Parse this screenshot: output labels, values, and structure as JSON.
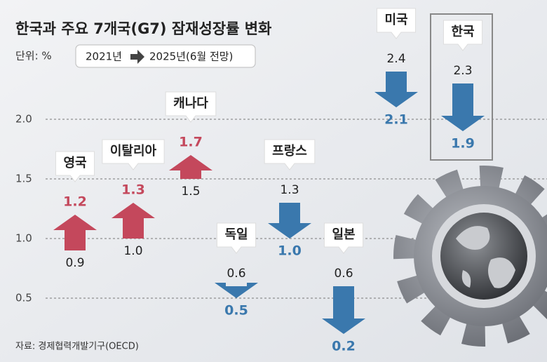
{
  "chart_data": {
    "type": "arrow",
    "title": "한국과 주요 7개국(G7) 잠재성장률 변화",
    "unit": "단위: %",
    "source": "자료: 경제협력개발기구(OECD)",
    "categories": [
      "영국",
      "이탈리아",
      "캐나다",
      "독일",
      "프랑스",
      "일본",
      "미국",
      "한국"
    ],
    "series": [
      {
        "name": "2021년",
        "values": [
          0.9,
          1.0,
          1.5,
          0.6,
          1.3,
          0.6,
          2.4,
          2.3
        ],
        "value_labels": [
          "0.9",
          "1.0",
          "1.5",
          "0.6",
          "1.3",
          "0.6",
          "2.4",
          "2.3"
        ]
      },
      {
        "name": "2025년(6월 전망)",
        "values": [
          1.2,
          1.3,
          1.7,
          0.5,
          1.0,
          0.2,
          2.1,
          1.9
        ],
        "value_labels": [
          "1.2",
          "1.3",
          "1.7",
          "0.5",
          "1.0",
          "0.2",
          "2.1",
          "1.9"
        ]
      }
    ],
    "colors": {
      "increase": "#c4485c",
      "decrease": "#3a78ad"
    },
    "ylim": [
      0,
      3.0
    ],
    "yticks": [
      0.5,
      {
        "value": 1.0,
        "label": "1.0"
      },
      1.5,
      {
        "value": 2.0,
        "label": "2.0"
      }
    ],
    "grid": true
  }
}
